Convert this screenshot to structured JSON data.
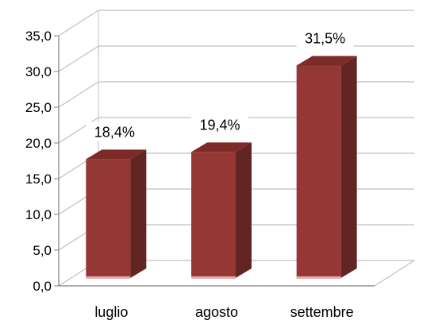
{
  "chart_data": {
    "type": "bar",
    "categories": [
      "luglio",
      "agosto",
      "settembre"
    ],
    "values": [
      18.4,
      19.4,
      31.5
    ],
    "data_labels": [
      "18,4%",
      "19,4%",
      "31,5%"
    ],
    "y_ticks": [
      "0,0",
      "5,0",
      "10,0",
      "15,0",
      "20,0",
      "25,0",
      "30,0",
      "35,0"
    ],
    "ylim": [
      0,
      35
    ],
    "grid": true,
    "legend": "none",
    "colors": {
      "bar_front": "#953735",
      "bar_side": "#632523",
      "bar_top": "#7d2b29",
      "grid": "#bfbfbf",
      "axis": "#808080"
    }
  }
}
